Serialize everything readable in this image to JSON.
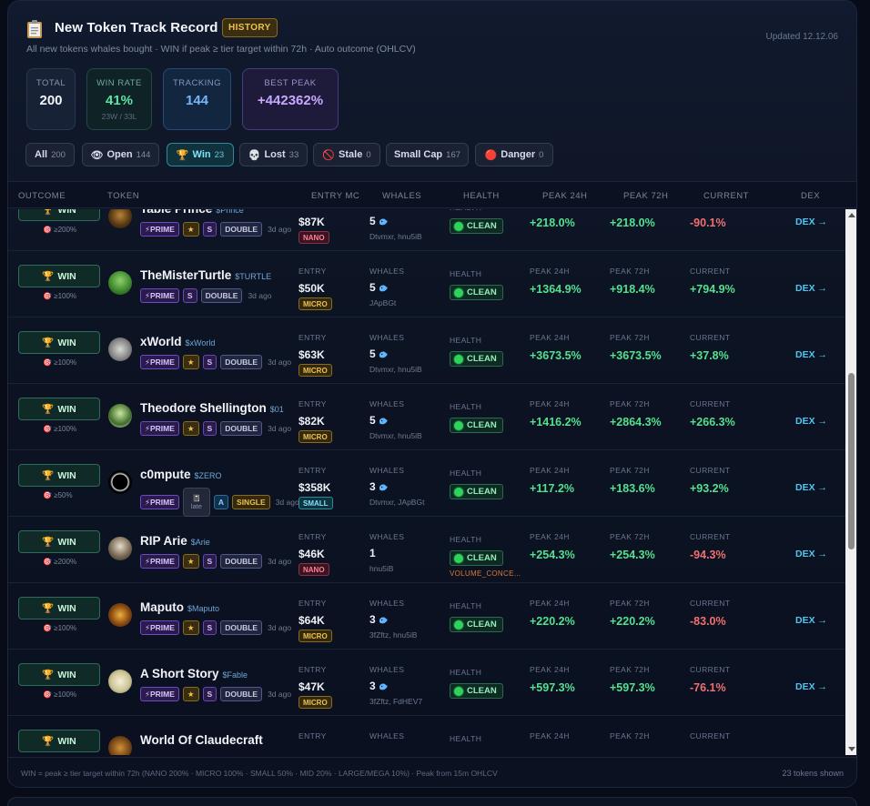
{
  "header": {
    "title": "New Token Track Record",
    "badge": "HISTORY",
    "subtitle": "All new tokens whales bought · WIN if peak ≥ tier target within 72h · Auto outcome (OHLCV)",
    "updated": "Updated 12.12.06"
  },
  "stats": {
    "total": {
      "label": "TOTAL",
      "value": "200"
    },
    "win_rate": {
      "label": "WIN RATE",
      "value": "41%",
      "sub": "23W / 33L"
    },
    "tracking": {
      "label": "TRACKING",
      "value": "144"
    },
    "best_peak": {
      "label": "BEST PEAK",
      "value": "+442362%"
    }
  },
  "filters": [
    {
      "label": "All",
      "count": "200"
    },
    {
      "label": "Open",
      "count": "144",
      "icon": "eye-icon"
    },
    {
      "label": "Win",
      "count": "23",
      "icon": "trophy-icon"
    },
    {
      "label": "Lost",
      "count": "33",
      "icon": "skull-icon"
    },
    {
      "label": "Stale",
      "count": "0",
      "icon": "no-entry-icon"
    },
    {
      "label": "Small Cap",
      "count": "167"
    },
    {
      "label": "Danger",
      "count": "0",
      "icon": "red-circle-icon"
    }
  ],
  "columns": [
    "OUTCOME",
    "TOKEN",
    "ENTRY MC",
    "WHALES",
    "HEALTH",
    "PEAK 24H",
    "PEAK 72H",
    "CURRENT",
    "DEX"
  ],
  "labels": {
    "win": "WIN",
    "entry": "ENTRY",
    "whales": "WHALES",
    "health": "HEALTH",
    "peak24": "PEAK 24H",
    "peak72": "PEAK 72H",
    "current": "CURRENT",
    "dex": "DEX →",
    "clean": "CLEAN",
    "prime": "⚡PRIME",
    "star": "★",
    "double": "DOUBLE",
    "single": "SINGLE",
    "late": "late"
  },
  "rows": [
    {
      "name": "Table Prince",
      "symbol": "$Prince",
      "target": "≥200%",
      "tier": "S",
      "star": true,
      "mult": "DOUBLE",
      "age": "3d ago",
      "entry": "$87K",
      "mc": "NANO",
      "whales": "5",
      "whale_names": "Dtvmxr, hnu5iB",
      "p24": "+218.0%",
      "p72": "+218.0%",
      "current": "-90.1%",
      "current_sign": "neg"
    },
    {
      "name": "TheMisterTurtle",
      "symbol": "$TURTLE",
      "target": "≥100%",
      "tier": "S",
      "star": false,
      "mult": "DOUBLE",
      "age": "3d ago",
      "entry": "$50K",
      "mc": "MICRO",
      "whales": "5",
      "whale_names": "JApBGt",
      "p24": "+1364.9%",
      "p72": "+918.4%",
      "current": "+794.9%",
      "current_sign": "pos"
    },
    {
      "name": "xWorld",
      "symbol": "$xWorld",
      "target": "≥100%",
      "tier": "S",
      "star": true,
      "mult": "DOUBLE",
      "age": "3d ago",
      "entry": "$63K",
      "mc": "MICRO",
      "whales": "5",
      "whale_names": "Dtvmxr, hnu5iB",
      "p24": "+3673.5%",
      "p72": "+3673.5%",
      "current": "+37.8%",
      "current_sign": "pos"
    },
    {
      "name": "Theodore Shellington",
      "symbol": "$01",
      "target": "≥100%",
      "tier": "S",
      "star": true,
      "mult": "DOUBLE",
      "age": "3d ago",
      "entry": "$82K",
      "mc": "MICRO",
      "whales": "5",
      "whale_names": "Dtvmxr, hnu5iB",
      "p24": "+1416.2%",
      "p72": "+2864.3%",
      "current": "+266.3%",
      "current_sign": "pos"
    },
    {
      "name": "c0mpute",
      "symbol": "$ZERO",
      "target": "≥50%",
      "tier": "A",
      "star": false,
      "mult": "SINGLE",
      "age": "3d ago",
      "late": true,
      "entry": "$358K",
      "mc": "SMALL",
      "whales": "3",
      "whale_names": "Dtvmxr, JApBGt",
      "p24": "+117.2%",
      "p72": "+183.6%",
      "current": "+93.2%",
      "current_sign": "pos"
    },
    {
      "name": "RIP Arie",
      "symbol": "$Arie",
      "target": "≥200%",
      "tier": "S",
      "star": true,
      "mult": "DOUBLE",
      "age": "3d ago",
      "entry": "$46K",
      "mc": "NANO",
      "whales": "1",
      "whale_names": "hnu5iB",
      "warning": "VOLUME_CONCE...",
      "p24": "+254.3%",
      "p72": "+254.3%",
      "current": "-94.3%",
      "current_sign": "neg"
    },
    {
      "name": "Maputo",
      "symbol": "$Maputo",
      "target": "≥100%",
      "tier": "S",
      "star": true,
      "mult": "DOUBLE",
      "age": "3d ago",
      "entry": "$64K",
      "mc": "MICRO",
      "whales": "3",
      "whale_names": "3fZftz, hnu5iB",
      "p24": "+220.2%",
      "p72": "+220.2%",
      "current": "-83.0%",
      "current_sign": "neg"
    },
    {
      "name": "A Short Story",
      "symbol": "$Fable",
      "target": "≥100%",
      "tier": "S",
      "star": true,
      "mult": "DOUBLE",
      "age": "3d ago",
      "entry": "$47K",
      "mc": "MICRO",
      "whales": "3",
      "whale_names": "3fZftz, FdHEV7",
      "p24": "+597.3%",
      "p72": "+597.3%",
      "current": "-76.1%",
      "current_sign": "neg"
    },
    {
      "name": "World Of Claudecraft",
      "symbol": "",
      "target": "",
      "tier": "",
      "star": false,
      "mult": "",
      "age": "",
      "entry": "",
      "mc": "",
      "whales": "",
      "whale_names": "",
      "p24": "",
      "p72": "",
      "current": "",
      "current_sign": "pos"
    }
  ],
  "footer": {
    "legend": "WIN = peak ≥ tier target within 72h (NANO 200% · MICRO 100% · SMALL 50% · MID 20% · LARGE/MEGA 10%) · Peak from 15m OHLCV",
    "count": "23 tokens shown"
  }
}
